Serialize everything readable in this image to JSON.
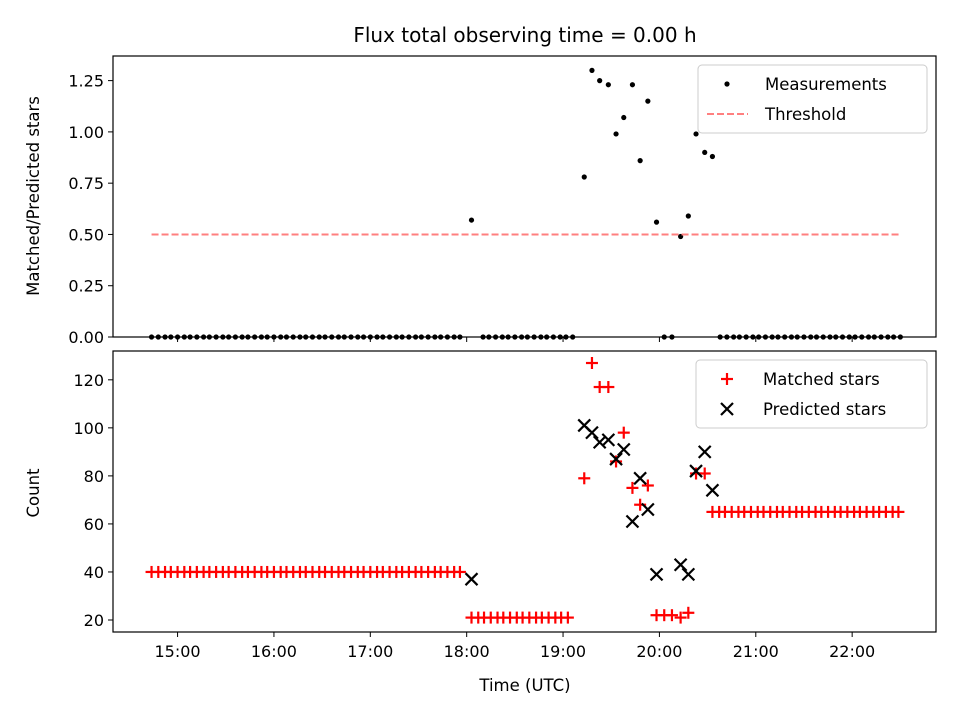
{
  "chart_data": [
    {
      "type": "scatter",
      "title": "Flux total observing time = 0.00 h",
      "xlabel": "",
      "ylabel": "Matched/Predicted stars",
      "ylim": [
        0,
        1.37
      ],
      "yticks": [
        0.0,
        0.25,
        0.5,
        0.75,
        1.0,
        1.25
      ],
      "ytick_labels": [
        "0.00",
        "0.25",
        "0.50",
        "0.75",
        "1.00",
        "1.25"
      ],
      "xlim_hours": [
        14.33,
        22.87
      ],
      "legend_position": "top-right",
      "series": [
        {
          "name": "Measurements",
          "marker": "dot",
          "color": "#000000",
          "x": [
            14.73,
            14.8,
            14.87,
            14.93,
            15.0,
            15.07,
            15.13,
            15.2,
            15.27,
            15.33,
            15.4,
            15.47,
            15.53,
            15.6,
            15.67,
            15.73,
            15.8,
            15.87,
            15.93,
            16.0,
            16.07,
            16.13,
            16.2,
            16.27,
            16.33,
            16.4,
            16.47,
            16.53,
            16.6,
            16.67,
            16.73,
            16.8,
            16.87,
            16.93,
            17.0,
            17.07,
            17.13,
            17.2,
            17.27,
            17.33,
            17.4,
            17.47,
            17.53,
            17.6,
            17.67,
            17.73,
            17.8,
            17.87,
            17.93,
            18.05,
            18.17,
            18.23,
            18.3,
            18.37,
            18.43,
            18.5,
            18.57,
            18.63,
            18.7,
            18.77,
            18.83,
            18.9,
            18.97,
            19.03,
            19.1,
            19.22,
            19.3,
            19.38,
            19.47,
            19.55,
            19.63,
            19.72,
            19.8,
            19.88,
            19.97,
            20.05,
            20.13,
            20.22,
            20.3,
            20.38,
            20.47,
            20.55,
            20.63,
            20.7,
            20.77,
            20.83,
            20.9,
            20.97,
            21.03,
            21.1,
            21.17,
            21.23,
            21.3,
            21.37,
            21.43,
            21.5,
            21.57,
            21.63,
            21.7,
            21.77,
            21.83,
            21.9,
            21.97,
            22.03,
            22.1,
            22.17,
            22.23,
            22.3,
            22.37,
            22.43,
            22.5
          ],
          "y": [
            0,
            0,
            0,
            0,
            0,
            0,
            0,
            0,
            0,
            0,
            0,
            0,
            0,
            0,
            0,
            0,
            0,
            0,
            0,
            0,
            0,
            0,
            0,
            0,
            0,
            0,
            0,
            0,
            0,
            0,
            0,
            0,
            0,
            0,
            0,
            0,
            0,
            0,
            0,
            0,
            0,
            0,
            0,
            0,
            0,
            0,
            0,
            0,
            0,
            0.57,
            0,
            0,
            0,
            0,
            0,
            0,
            0,
            0,
            0,
            0,
            0,
            0,
            0,
            0,
            0,
            0.78,
            1.3,
            1.25,
            1.23,
            0.99,
            1.07,
            1.23,
            0.86,
            1.15,
            0.56,
            0,
            0,
            0.49,
            0.59,
            0.99,
            0.9,
            0.88,
            0,
            0,
            0,
            0,
            0,
            0,
            0,
            0,
            0,
            0,
            0,
            0,
            0,
            0,
            0,
            0,
            0,
            0,
            0,
            0,
            0,
            0,
            0,
            0,
            0,
            0,
            0,
            0,
            0
          ]
        },
        {
          "name": "Threshold",
          "marker": "dashed-line",
          "color": "#ff7f7f",
          "x": [
            14.73,
            22.5
          ],
          "y": [
            0.5,
            0.5
          ]
        }
      ]
    },
    {
      "type": "scatter",
      "title": "",
      "xlabel": "Time (UTC)",
      "ylabel": "Count",
      "ylim": [
        15,
        132
      ],
      "yticks": [
        20,
        40,
        60,
        80,
        100,
        120
      ],
      "ytick_labels": [
        "20",
        "40",
        "60",
        "80",
        "100",
        "120"
      ],
      "xlim_hours": [
        14.33,
        22.87
      ],
      "xticks_hours": [
        15,
        16,
        17,
        18,
        19,
        20,
        21,
        22
      ],
      "xtick_labels": [
        "15:00",
        "16:00",
        "17:00",
        "18:00",
        "19:00",
        "20:00",
        "21:00",
        "22:00"
      ],
      "legend_position": "top-right",
      "series": [
        {
          "name": "Matched stars",
          "marker": "plus",
          "color": "#ff0000",
          "x": [
            14.73,
            14.8,
            14.87,
            14.93,
            15.0,
            15.07,
            15.13,
            15.2,
            15.27,
            15.33,
            15.4,
            15.47,
            15.53,
            15.6,
            15.67,
            15.73,
            15.8,
            15.87,
            15.93,
            16.0,
            16.07,
            16.13,
            16.2,
            16.27,
            16.33,
            16.4,
            16.47,
            16.53,
            16.6,
            16.67,
            16.73,
            16.8,
            16.87,
            16.93,
            17.0,
            17.07,
            17.13,
            17.2,
            17.27,
            17.33,
            17.4,
            17.47,
            17.53,
            17.6,
            17.67,
            17.73,
            17.8,
            17.87,
            17.93,
            18.05,
            18.12,
            18.18,
            18.25,
            18.32,
            18.38,
            18.45,
            18.52,
            18.58,
            18.65,
            18.72,
            18.78,
            18.85,
            18.92,
            18.98,
            19.05,
            19.22,
            19.3,
            19.38,
            19.47,
            19.55,
            19.63,
            19.72,
            19.8,
            19.88,
            19.97,
            20.05,
            20.13,
            20.22,
            20.3,
            20.38,
            20.47,
            20.55,
            20.62,
            20.68,
            20.75,
            20.82,
            20.88,
            20.95,
            21.02,
            21.08,
            21.15,
            21.22,
            21.28,
            21.35,
            21.42,
            21.48,
            21.55,
            21.62,
            21.68,
            21.75,
            21.82,
            21.88,
            21.95,
            22.02,
            22.08,
            22.15,
            22.22,
            22.28,
            22.35,
            22.42,
            22.48
          ],
          "y": [
            40,
            40,
            40,
            40,
            40,
            40,
            40,
            40,
            40,
            40,
            40,
            40,
            40,
            40,
            40,
            40,
            40,
            40,
            40,
            40,
            40,
            40,
            40,
            40,
            40,
            40,
            40,
            40,
            40,
            40,
            40,
            40,
            40,
            40,
            40,
            40,
            40,
            40,
            40,
            40,
            40,
            40,
            40,
            40,
            40,
            40,
            40,
            40,
            40,
            21,
            21,
            21,
            21,
            21,
            21,
            21,
            21,
            21,
            21,
            21,
            21,
            21,
            21,
            21,
            21,
            79,
            127,
            117,
            117,
            86,
            98,
            75,
            68,
            76,
            22,
            22,
            22,
            21,
            23,
            81,
            81,
            65,
            65,
            65,
            65,
            65,
            65,
            65,
            65,
            65,
            65,
            65,
            65,
            65,
            65,
            65,
            65,
            65,
            65,
            65,
            65,
            65,
            65,
            65,
            65,
            65,
            65,
            65,
            65,
            65,
            65
          ]
        },
        {
          "name": "Predicted stars",
          "marker": "x",
          "color": "#000000",
          "x": [
            18.05,
            19.22,
            19.3,
            19.38,
            19.47,
            19.55,
            19.63,
            19.72,
            19.8,
            19.88,
            19.97,
            20.22,
            20.3,
            20.38,
            20.47,
            20.55
          ],
          "y": [
            37,
            101,
            98,
            94,
            95,
            87,
            91,
            61,
            79,
            66,
            39,
            43,
            39,
            82,
            90,
            74
          ]
        }
      ]
    }
  ]
}
